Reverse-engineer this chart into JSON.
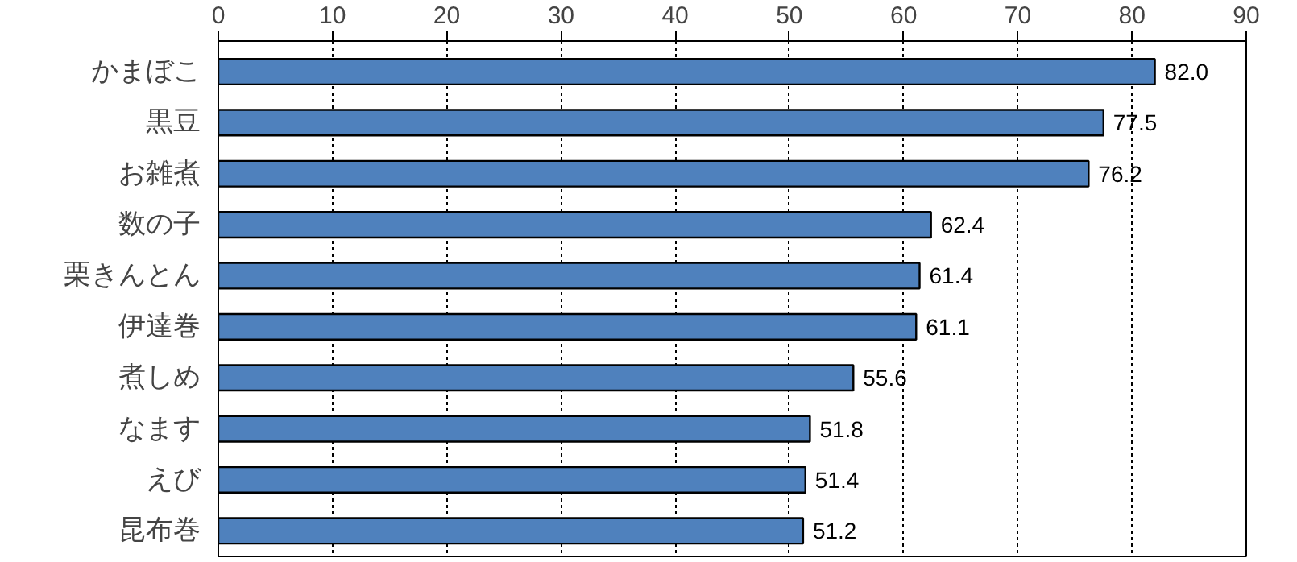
{
  "chart_data": {
    "type": "bar",
    "orientation": "horizontal",
    "categories": [
      "かまぼこ",
      "黒豆",
      "お雑煮",
      "数の子",
      "栗きんとん",
      "伊達巻",
      "煮しめ",
      "なます",
      "えび",
      "昆布巻"
    ],
    "values": [
      82.0,
      77.5,
      76.2,
      62.4,
      61.4,
      61.1,
      55.6,
      51.8,
      51.4,
      51.2
    ],
    "color": "#4f81bd",
    "xlim": [
      0,
      90
    ],
    "xticks": [
      0,
      10,
      20,
      30,
      40,
      50,
      60,
      70,
      80,
      90
    ],
    "value_labels": [
      "82.0",
      "77.5",
      "76.2",
      "62.4",
      "61.4",
      "61.1",
      "55.6",
      "51.8",
      "51.4",
      "51.2"
    ],
    "grid": "x"
  }
}
